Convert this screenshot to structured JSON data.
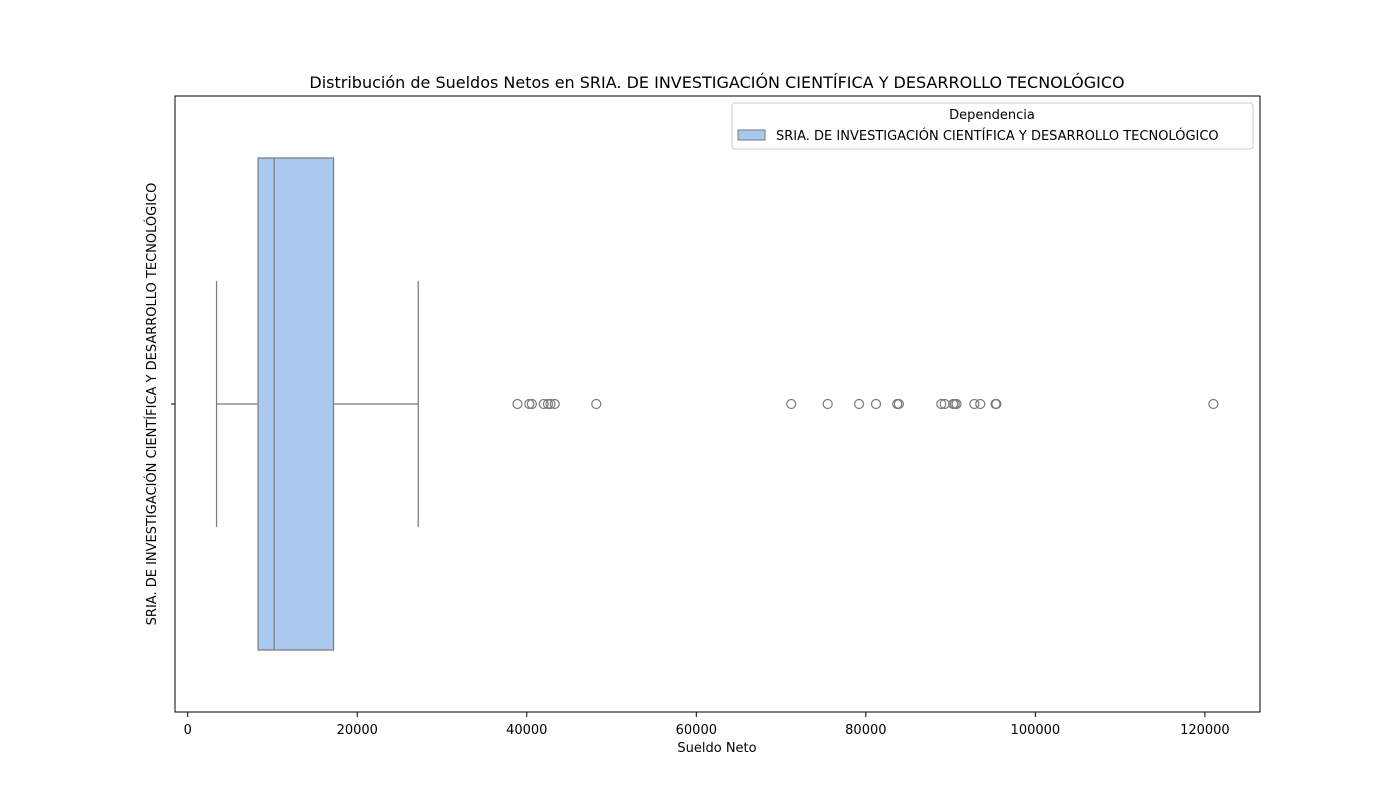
{
  "chart_data": {
    "type": "box",
    "orientation": "horizontal",
    "title": "Distribución de Sueldos Netos en SRIA. DE INVESTIGACIÓN CIENTÍFICA Y DESARROLLO TECNOLÓGICO",
    "xlabel": "Sueldo Neto",
    "ylabel": "SRIA. DE INVESTIGACIÓN CIENTÍFICA Y DESARROLLO TECNOLÓGICO",
    "xlim": [
      -1500,
      126500
    ],
    "xticks": [
      0,
      20000,
      40000,
      60000,
      80000,
      100000,
      120000
    ],
    "categories": [
      "SRIA. DE INVESTIGACIÓN CIENTÍFICA Y DESARROLLO TECNOLÓGICO"
    ],
    "series": [
      {
        "name": "SRIA. DE INVESTIGACIÓN CIENTÍFICA Y DESARROLLO TECNOLÓGICO",
        "color": "#abc9ef",
        "edge_color": "#7a7a7a",
        "min": 3400,
        "q1": 8300,
        "median": 10200,
        "q3": 17200,
        "max": 27200,
        "outliers": [
          38900,
          40300,
          40600,
          42000,
          42500,
          42800,
          43300,
          48200,
          71200,
          75500,
          79200,
          81200,
          83700,
          83900,
          88900,
          89300,
          90300,
          90500,
          90700,
          92800,
          93500,
          95300,
          95400,
          121000
        ]
      }
    ],
    "legend": {
      "title": "Dependencia",
      "placement": "top-right",
      "entries": [
        "SRIA. DE INVESTIGACIÓN CIENTÍFICA Y DESARROLLO TECNOLÓGICO"
      ]
    },
    "grid": false
  }
}
